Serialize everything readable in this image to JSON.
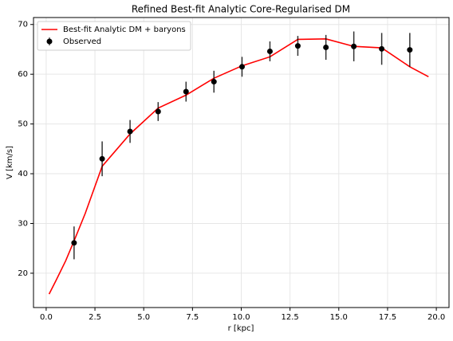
{
  "chart_data": {
    "type": "line",
    "title": "Refined Best-fit Analytic Core-Regularised DM",
    "x_label": "r [kpc]",
    "y_label": "V [km/s]",
    "xlim": [
      -0.65,
      20.65
    ],
    "ylim": [
      13.1,
      71.4
    ],
    "xticks": [
      {
        "value": 0,
        "label": "0.0"
      },
      {
        "value": 2.5,
        "label": "2.5"
      },
      {
        "value": 5,
        "label": "5.0"
      },
      {
        "value": 7.5,
        "label": "7.5"
      },
      {
        "value": 10,
        "label": "10.0"
      },
      {
        "value": 12.5,
        "label": "12.5"
      },
      {
        "value": 15,
        "label": "15.0"
      },
      {
        "value": 17.5,
        "label": "17.5"
      },
      {
        "value": 20,
        "label": "20.0"
      }
    ],
    "yticks": [
      20,
      30,
      40,
      50,
      60,
      70
    ],
    "grid": true,
    "legend": "upper-left",
    "series": [
      {
        "name": "Best-fit Analytic DM + baryons",
        "color": "#ff0000",
        "mode": "line",
        "x": [
          0.15,
          0.5,
          1.0,
          1.43,
          2.0,
          2.87,
          4.3,
          5.74,
          7.17,
          8.6,
          10.04,
          11.47,
          12.9,
          14.34,
          15.77,
          17.2,
          18.64,
          19.6
        ],
        "values": [
          15.8,
          18.5,
          22.5,
          26.5,
          32,
          41.5,
          48,
          53.2,
          55.8,
          59.2,
          61.7,
          63.5,
          67,
          67.1,
          65.6,
          65.3,
          61.5,
          59.5
        ]
      },
      {
        "name": "Observed",
        "color": "#000000",
        "mode": "errorbar",
        "x": [
          1.43,
          2.87,
          4.3,
          5.74,
          7.17,
          8.6,
          10.04,
          11.47,
          12.9,
          14.34,
          15.77,
          17.2,
          18.64
        ],
        "values": [
          26.1,
          43.0,
          48.5,
          52.5,
          56.5,
          58.5,
          61.5,
          64.6,
          65.7,
          65.4,
          65.6,
          65.1,
          64.9
        ],
        "errors": [
          3.3,
          3.5,
          2.3,
          1.9,
          2.0,
          2.2,
          2.0,
          2.0,
          2.0,
          2.5,
          3.0,
          3.2,
          3.4
        ]
      }
    ]
  }
}
